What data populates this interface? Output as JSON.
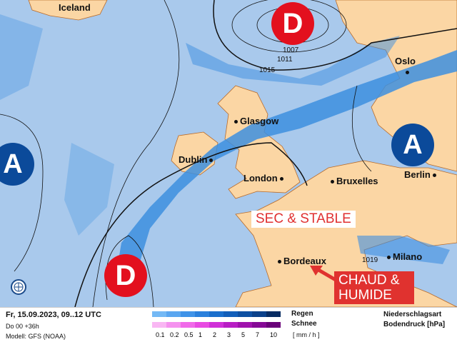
{
  "map": {
    "colors": {
      "ocean": "#a9c9ec",
      "land": "#fbd6a4",
      "rain": "#3d8fe0",
      "low": "#e3101e",
      "high": "#0b4a9a"
    },
    "cities": [
      {
        "name": "Iceland"
      },
      {
        "name": "Oslo"
      },
      {
        "name": "Glasgow"
      },
      {
        "name": "Dublin"
      },
      {
        "name": "London"
      },
      {
        "name": "Bruxelles"
      },
      {
        "name": "Berlin"
      },
      {
        "name": "Milano"
      },
      {
        "name": "Bordeaux"
      }
    ],
    "isobars": [
      "1007",
      "1011",
      "1015",
      "1019"
    ],
    "lows": "D",
    "highs": "A",
    "globe_icon": "globe-icon"
  },
  "overlay": {
    "sec": "SEC & STABLE",
    "chaud": "CHAUD & HUMIDE"
  },
  "footer": {
    "date": "Fr, 15.09.2023, 09..12 UTC",
    "run": "Do 00 +36h",
    "model": "Modell: GFS (NOAA)",
    "rain_label": "Regen",
    "snow_label": "Schnee",
    "ticks": [
      "0.1",
      "0.2",
      "0.5",
      "1",
      "2",
      "3",
      "5",
      "7",
      "10"
    ],
    "unit": "[ mm / h ]",
    "type": "Niederschlagsart",
    "pressure": "Bodendruck [hPa]",
    "rain_colors": [
      "#74b9f5",
      "#5aa6f0",
      "#3f93e8",
      "#2a80dc",
      "#1a6fcc",
      "#125fba",
      "#0e50a2",
      "#0b418a",
      "#072c62"
    ],
    "snow_colors": [
      "#f9b7f3",
      "#f592ef",
      "#f06ae9",
      "#e84be2",
      "#d030d8",
      "#b81ec4",
      "#a012ad",
      "#860996",
      "#6a0279"
    ]
  }
}
